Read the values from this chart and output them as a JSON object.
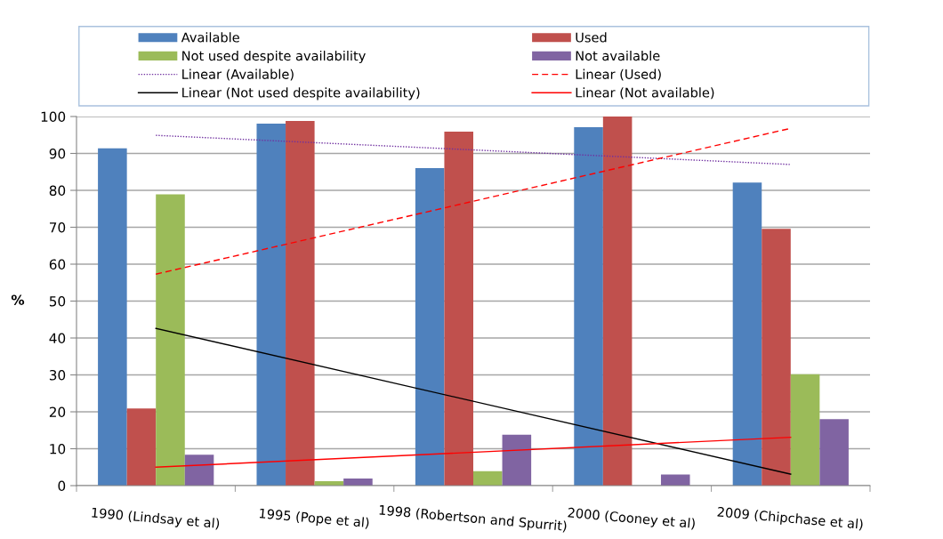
{
  "chart_data": {
    "type": "bar",
    "ylabel": "%",
    "categories": [
      "1990 (Lindsay et al)",
      "1995 (Pope et al)",
      "1998 (Robertson and Spurrit)",
      "2000 (Cooney et al)",
      "2009 (Chipchase et al)"
    ],
    "series": [
      {
        "name": "Available",
        "color": "#4f81bd",
        "values": [
          91.4,
          98.1,
          86.0,
          97.1,
          82.1
        ]
      },
      {
        "name": "Used",
        "color": "#c0504d",
        "values": [
          20.9,
          98.8,
          95.9,
          100,
          69.6
        ]
      },
      {
        "name": "Not used despite availability",
        "color": "#9bbb59",
        "values": [
          78.9,
          1.2,
          3.9,
          0,
          30.2
        ]
      },
      {
        "name": "Not available",
        "color": "#8064a2",
        "values": [
          8.4,
          1.9,
          13.8,
          3.0,
          18.0
        ]
      },
      {
        "name": "Linear (Available)",
        "type": "line",
        "line_style": "dotted",
        "color": "#7030a0",
        "x": [
          "1990 (Lindsay et al)",
          "2009 (Chipchase et al)"
        ],
        "values": [
          94.9,
          87.0
        ]
      },
      {
        "name": "Linear (Used)",
        "type": "line",
        "line_style": "dashed",
        "color": "#ff0000",
        "x": [
          "1990 (Lindsay et al)",
          "2009 (Chipchase et al)"
        ],
        "values": [
          57.3,
          96.8
        ]
      },
      {
        "name": "Linear (Not used despite availability)",
        "type": "line",
        "line_style": "solid",
        "color": "#000000",
        "x": [
          "1990 (Lindsay et al)",
          "2009 (Chipchase et al)"
        ],
        "values": [
          42.6,
          3.1
        ]
      },
      {
        "name": "Linear (Not available)",
        "type": "line",
        "line_style": "solid",
        "color": "#ff0000",
        "x": [
          "1990 (Lindsay et al)",
          "2009 (Chipchase et al)"
        ],
        "values": [
          5.0,
          13.1
        ]
      }
    ],
    "ylim": [
      0,
      100
    ],
    "yticks": [
      0,
      10,
      20,
      30,
      40,
      50,
      60,
      70,
      80,
      90,
      100
    ],
    "grid": "y",
    "legend": "top"
  }
}
